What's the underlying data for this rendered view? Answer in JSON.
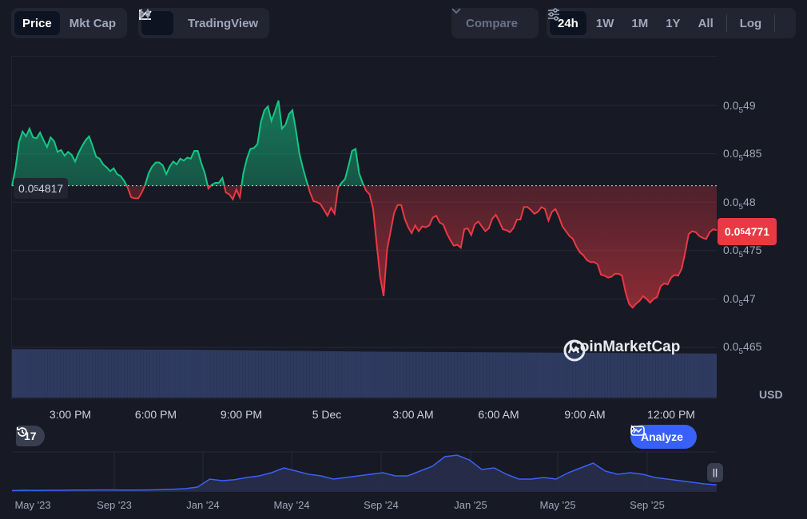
{
  "toolbar": {
    "price_label": "Price",
    "mktcap_label": "Mkt Cap",
    "tradingview_label": "TradingView",
    "compare_label": "Compare",
    "ranges": [
      "24h",
      "1W",
      "1M",
      "1Y",
      "All"
    ],
    "active_range": "24h",
    "log_label": "Log"
  },
  "chart": {
    "ref_price_label_prefix": "0.0",
    "ref_price_label_sub": "5",
    "ref_price_label_suffix": "4817",
    "current_price_prefix": "0.0",
    "current_price_sub": "5",
    "current_price_suffix": "4771",
    "y_labels": [
      {
        "prefix": "0.0",
        "sub": "5",
        "suffix": "49"
      },
      {
        "prefix": "0.0",
        "sub": "5",
        "suffix": "485"
      },
      {
        "prefix": "0.0",
        "sub": "5",
        "suffix": "48"
      },
      {
        "prefix": "0.0",
        "sub": "5",
        "suffix": "475"
      },
      {
        "prefix": "0.0",
        "sub": "5",
        "suffix": "47"
      },
      {
        "prefix": "0.0",
        "sub": "5",
        "suffix": "465"
      }
    ],
    "currency": "USD",
    "x_labels": [
      "3:00 PM",
      "6:00 PM",
      "9:00 PM",
      "5 Dec",
      "3:00 AM",
      "6:00 AM",
      "9:00 AM",
      "12:00 PM"
    ],
    "watermark": "CoinMarketCap",
    "history_count": "17",
    "analyze_label": "Analyze",
    "colors": {
      "up": "#16c784",
      "down": "#ea3943",
      "accent": "#3861fb",
      "volume": "#2e3a5f"
    }
  },
  "minimap": {
    "x_labels": [
      "May '23",
      "Sep '23",
      "Jan '24",
      "May '24",
      "Sep '24",
      "Jan '25",
      "May '25",
      "Sep '25"
    ]
  },
  "chart_data": {
    "type": "line",
    "ref_price": 4.817e-06,
    "current_price": 4.771e-06,
    "x_ticks": [
      "3:00 PM",
      "6:00 PM",
      "9:00 PM",
      "5 Dec",
      "3:00 AM",
      "6:00 AM",
      "9:00 AM",
      "12:00 PM"
    ],
    "ylim": [
      4.645e-06,
      4.94e-06
    ],
    "y_ticks": [
      4.9e-06,
      4.85e-06,
      4.8e-06,
      4.75e-06,
      4.7e-06,
      4.65e-06
    ],
    "price_series": [
      4.817,
      4.835,
      4.862,
      4.873,
      4.868,
      4.876,
      4.867,
      4.866,
      4.872,
      4.864,
      4.857,
      4.867,
      4.863,
      4.852,
      4.854,
      4.848,
      4.852,
      4.849,
      4.842,
      4.851,
      4.858,
      4.864,
      4.868,
      4.858,
      4.847,
      4.845,
      4.839,
      4.836,
      4.832,
      4.835,
      4.829,
      4.827,
      4.822,
      4.815,
      4.805,
      4.804,
      4.804,
      4.81,
      4.818,
      4.83,
      4.837,
      4.841,
      4.841,
      4.838,
      4.829,
      4.837,
      4.842,
      4.839,
      4.845,
      4.843,
      4.846,
      4.845,
      4.853,
      4.853,
      4.84,
      4.83,
      4.814,
      4.818,
      4.82,
      4.82,
      4.825,
      4.81,
      4.808,
      4.803,
      4.813,
      4.805,
      4.83,
      4.845,
      4.855,
      4.856,
      4.86,
      4.883,
      4.895,
      4.899,
      4.884,
      4.894,
      4.905,
      4.876,
      4.88,
      4.891,
      4.895,
      4.874,
      4.85,
      4.835,
      4.822,
      4.81,
      4.801,
      4.8,
      4.798,
      4.792,
      4.786,
      4.794,
      4.788,
      4.815,
      4.82,
      4.824,
      4.838,
      4.853,
      4.855,
      4.83,
      4.82,
      4.812,
      4.808,
      4.793,
      4.757,
      4.723,
      4.703,
      4.751,
      4.77,
      4.789,
      4.797,
      4.797,
      4.783,
      4.774,
      4.768,
      4.776,
      4.77,
      4.775,
      4.774,
      4.776,
      4.784,
      4.786,
      4.779,
      4.777,
      4.768,
      4.761,
      4.755,
      4.756,
      4.753,
      4.772,
      4.773,
      4.766,
      4.777,
      4.78,
      4.775,
      4.77,
      4.773,
      4.783,
      4.787,
      4.78,
      4.772,
      4.771,
      4.769,
      4.773,
      4.782,
      4.782,
      4.795,
      4.795,
      4.792,
      4.788,
      4.79,
      4.795,
      4.793,
      4.781,
      4.79,
      4.793,
      4.785,
      4.775,
      4.77,
      4.765,
      4.762,
      4.754,
      4.748,
      4.745,
      4.74,
      4.738,
      4.738,
      4.736,
      4.725,
      4.724,
      4.722,
      4.723,
      4.726,
      4.726,
      4.724,
      4.707,
      4.695,
      4.691,
      4.695,
      4.698,
      4.703,
      4.7,
      4.696,
      4.7,
      4.702,
      4.713,
      4.716,
      4.715,
      4.722,
      4.725,
      4.724,
      4.731,
      4.748,
      4.767,
      4.77,
      4.769,
      4.765,
      4.763,
      4.762,
      4.769,
      4.772,
      4.771
    ],
    "price_series_units": "1e-6 USD",
    "volume_series": [
      {
        "x": 0,
        "v": 0.98
      },
      {
        "x": 0.25,
        "v": 0.97
      },
      {
        "x": 0.5,
        "v": 0.93
      },
      {
        "x": 0.75,
        "v": 0.91
      },
      {
        "x": 1.0,
        "v": 0.89
      }
    ],
    "minimap_ticks": [
      "May '23",
      "Sep '23",
      "Jan '24",
      "May '24",
      "Sep '24",
      "Jan '25",
      "May '25",
      "Sep '25"
    ],
    "minimap_series": [
      0.4,
      0.5,
      0.45,
      0.5,
      0.5,
      0.55,
      0.55,
      0.6,
      0.6,
      0.55,
      0.55,
      0.6,
      0.7,
      0.8,
      1.0,
      1.5,
      4.0,
      3.5,
      3.8,
      4.5,
      5.0,
      6.0,
      7.5,
      6.5,
      5.5,
      5.0,
      4.0,
      4.5,
      5.0,
      5.5,
      6.0,
      5.0,
      5.0,
      6.5,
      8.0,
      11.0,
      11.5,
      10.0,
      7.0,
      7.5,
      5.5,
      4.0,
      4.0,
      4.5,
      4.0,
      6.0,
      7.5,
      9.0,
      6.5,
      5.5,
      6.0,
      5.5,
      4.5,
      4.0,
      3.5,
      3.0,
      2.5,
      2.2
    ]
  }
}
